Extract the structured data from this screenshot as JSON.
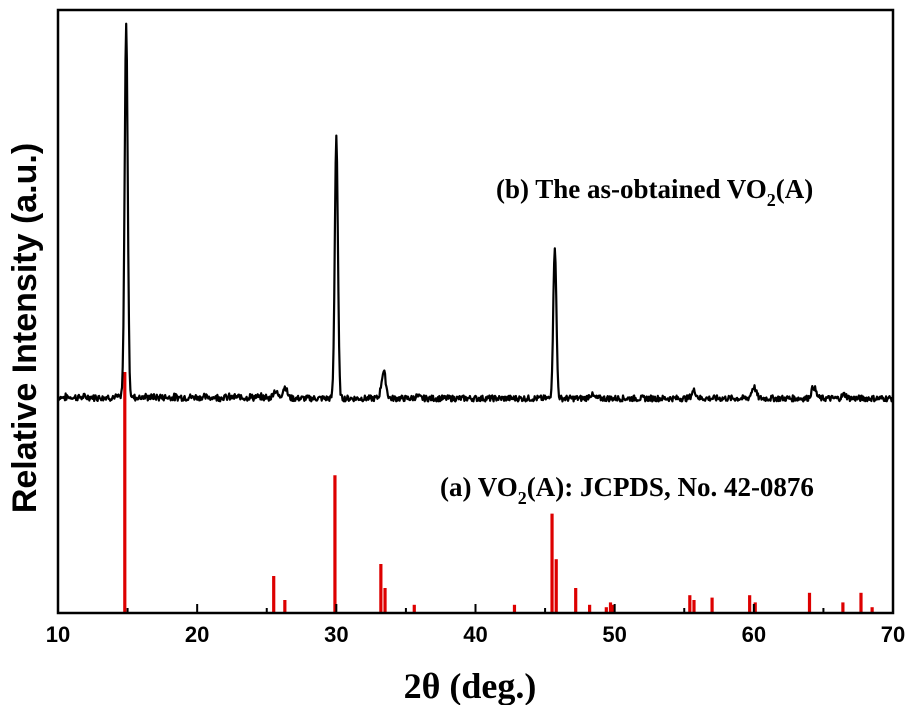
{
  "chart_data": {
    "type": "line",
    "xlabel": "2θ (deg.)",
    "ylabel": "Relative Intensity (a.u.)",
    "xlim": [
      10,
      70
    ],
    "xticks": [
      "10",
      "20",
      "30",
      "40",
      "50",
      "60",
      "70"
    ],
    "yticks_shown": false,
    "grid": false,
    "colors": {
      "measured": "#000000",
      "reference": "#dd0000",
      "axes": "#000000"
    },
    "annotations": [
      {
        "id": "b",
        "text_main": "(b) The as-obtained VO",
        "subscript": "2",
        "text_tail": "(A)"
      },
      {
        "id": "a",
        "text_main": "(a) VO",
        "subscript": "2",
        "text_tail": "(A): JCPDS, No. 42-0876"
      }
    ],
    "series": [
      {
        "id": "b",
        "style": "line",
        "baseline": 2.0,
        "peaks": [
          {
            "x": 14.9,
            "y": 100
          },
          {
            "x": 25.6,
            "y": 4
          },
          {
            "x": 26.3,
            "y": 5
          },
          {
            "x": 30.0,
            "y": 71
          },
          {
            "x": 33.4,
            "y": 9
          },
          {
            "x": 35.8,
            "y": 2.5
          },
          {
            "x": 43.0,
            "y": 2
          },
          {
            "x": 45.7,
            "y": 42
          },
          {
            "x": 47.5,
            "y": 2
          },
          {
            "x": 48.3,
            "y": 3
          },
          {
            "x": 49.9,
            "y": 2
          },
          {
            "x": 55.7,
            "y": 4
          },
          {
            "x": 57.2,
            "y": 2
          },
          {
            "x": 60.0,
            "y": 5
          },
          {
            "x": 64.3,
            "y": 5
          },
          {
            "x": 66.5,
            "y": 3
          },
          {
            "x": 68.0,
            "y": 2
          }
        ]
      },
      {
        "id": "a",
        "style": "stick",
        "peaks": [
          {
            "x": 14.8,
            "y": 100
          },
          {
            "x": 25.5,
            "y": 15
          },
          {
            "x": 26.3,
            "y": 5
          },
          {
            "x": 29.9,
            "y": 57
          },
          {
            "x": 33.2,
            "y": 20
          },
          {
            "x": 33.5,
            "y": 10
          },
          {
            "x": 35.6,
            "y": 3
          },
          {
            "x": 42.8,
            "y": 3
          },
          {
            "x": 45.5,
            "y": 41
          },
          {
            "x": 45.8,
            "y": 22
          },
          {
            "x": 47.2,
            "y": 10
          },
          {
            "x": 48.2,
            "y": 3
          },
          {
            "x": 49.4,
            "y": 2
          },
          {
            "x": 49.7,
            "y": 4
          },
          {
            "x": 49.9,
            "y": 3
          },
          {
            "x": 55.4,
            "y": 7
          },
          {
            "x": 55.7,
            "y": 5
          },
          {
            "x": 57.0,
            "y": 6
          },
          {
            "x": 59.7,
            "y": 7
          },
          {
            "x": 60.1,
            "y": 4
          },
          {
            "x": 64.0,
            "y": 8
          },
          {
            "x": 66.4,
            "y": 4
          },
          {
            "x": 67.7,
            "y": 8
          },
          {
            "x": 68.5,
            "y": 2
          }
        ]
      }
    ]
  }
}
